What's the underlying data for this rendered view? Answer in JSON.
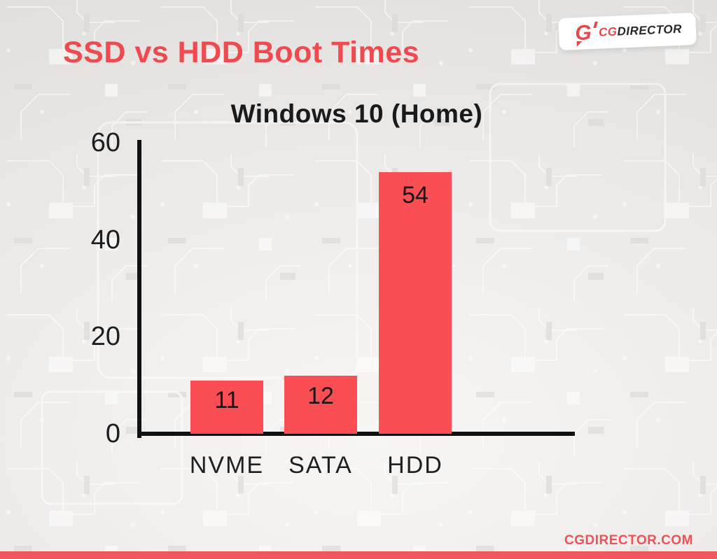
{
  "header": {
    "title": "SSD vs HDD Boot Times"
  },
  "logo": {
    "mark_letter": "G",
    "text_red": "CG",
    "text_dark": "DIRECTOR"
  },
  "footer": {
    "site_url": "CGDIRECTOR.COM"
  },
  "colors": {
    "accent_red": "#ef4a4f",
    "bar_red": "#fb4e54",
    "footer_strip_red": "#ef575c",
    "axis_ink": "#111111",
    "background_gray": "#eceae8"
  },
  "chart_data": {
    "type": "bar",
    "title": "Windows 10 (Home)",
    "categories": [
      "NVME",
      "SATA",
      "HDD"
    ],
    "values": [
      11,
      12,
      54
    ],
    "value_labels": [
      "11",
      "12",
      "54"
    ],
    "yticks": [
      0,
      20,
      40,
      60
    ],
    "ylim": [
      0,
      60
    ],
    "xlabel": "",
    "ylabel": "",
    "grid": false,
    "legend": false,
    "bar_color": "#fb4e54"
  }
}
